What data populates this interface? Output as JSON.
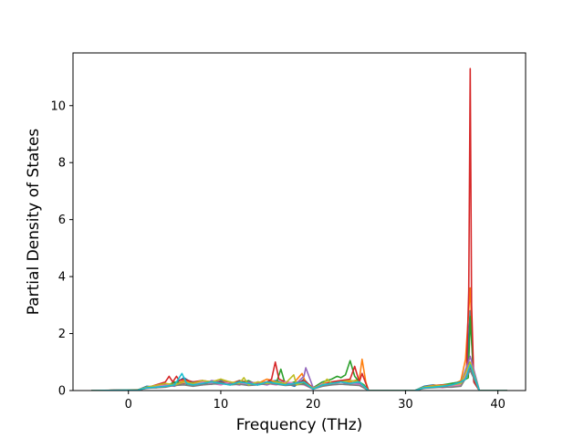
{
  "chart_data": {
    "type": "line",
    "xlabel": "Frequency (THz)",
    "ylabel": "Partial Density of States",
    "xlim": [
      -6,
      43
    ],
    "ylim": [
      0,
      11.85
    ],
    "xticks": [
      0,
      10,
      20,
      30,
      40
    ],
    "yticks": [
      0,
      2,
      4,
      6,
      8,
      10
    ],
    "grid": false,
    "series": [
      {
        "color": "#1f77b4",
        "x": [
          -4,
          1,
          2,
          3,
          4,
          5,
          6,
          7,
          8,
          9,
          10,
          11,
          12,
          13,
          14,
          15,
          16,
          17,
          18,
          19,
          20,
          21,
          22,
          23,
          24,
          25,
          25.5,
          26,
          31,
          32,
          33,
          34,
          35,
          36,
          36.6,
          37,
          37.4,
          38,
          41
        ],
        "y": [
          0,
          0.02,
          0.15,
          0.12,
          0.2,
          0.25,
          0.45,
          0.25,
          0.3,
          0.22,
          0.35,
          0.2,
          0.3,
          0.25,
          0.2,
          0.3,
          0.35,
          0.25,
          0.15,
          0.4,
          0.05,
          0.2,
          0.25,
          0.3,
          0.25,
          0.3,
          0.1,
          0,
          0,
          0.15,
          0.2,
          0.15,
          0.25,
          0.3,
          0.5,
          2.8,
          0.3,
          0,
          0
        ]
      },
      {
        "color": "#ff7f0e",
        "x": [
          -4,
          1,
          2,
          3,
          4,
          5,
          6,
          7,
          8,
          9,
          10,
          11,
          12,
          13,
          14,
          15,
          16,
          17,
          18,
          18.8,
          19.3,
          20,
          21,
          22,
          23,
          24,
          25,
          25.3,
          25.7,
          26,
          31,
          32,
          33,
          34,
          35,
          36,
          36.5,
          37,
          37.4,
          38,
          41
        ],
        "y": [
          0,
          0.03,
          0.12,
          0.15,
          0.22,
          0.2,
          0.35,
          0.3,
          0.25,
          0.3,
          0.4,
          0.25,
          0.35,
          0.3,
          0.25,
          0.4,
          0.3,
          0.2,
          0.3,
          0.6,
          0.2,
          0.1,
          0.25,
          0.3,
          0.35,
          0.3,
          0.4,
          1.1,
          0.3,
          0,
          0,
          0.12,
          0.18,
          0.2,
          0.2,
          0.35,
          1.1,
          3.6,
          0.4,
          0,
          0
        ]
      },
      {
        "color": "#2ca02c",
        "x": [
          -4,
          1,
          2,
          3,
          4,
          5,
          6,
          7,
          8,
          9,
          10,
          11,
          12,
          13,
          14,
          15,
          16,
          16.5,
          17,
          18,
          19,
          20,
          21,
          22,
          22.6,
          23,
          23.5,
          24,
          24.5,
          25,
          25.5,
          26,
          31,
          32,
          33,
          34,
          35,
          36,
          36.8,
          37,
          37.4,
          38,
          41
        ],
        "y": [
          0,
          0.02,
          0.1,
          0.18,
          0.15,
          0.3,
          0.25,
          0.2,
          0.35,
          0.25,
          0.3,
          0.2,
          0.25,
          0.35,
          0.2,
          0.3,
          0.25,
          0.75,
          0.2,
          0.3,
          0.25,
          0.1,
          0.3,
          0.4,
          0.5,
          0.45,
          0.55,
          1.05,
          0.5,
          0.3,
          0.2,
          0,
          0,
          0.1,
          0.15,
          0.2,
          0.25,
          0.3,
          0.45,
          2.6,
          0.3,
          0,
          0
        ]
      },
      {
        "color": "#d62728",
        "x": [
          -4,
          1,
          2,
          3,
          4,
          4.4,
          4.8,
          5.2,
          5.5,
          6,
          7,
          8,
          9,
          10,
          11,
          12,
          13,
          14,
          15,
          15.5,
          15.9,
          16.3,
          17,
          18,
          19,
          20,
          21,
          22,
          23,
          24,
          24.5,
          25,
          25.3,
          26,
          31,
          32,
          33,
          34,
          35,
          36,
          36.6,
          36.85,
          37.0,
          37.15,
          37.4,
          38,
          41
        ],
        "y": [
          0,
          0.02,
          0.1,
          0.2,
          0.3,
          0.5,
          0.3,
          0.5,
          0.35,
          0.4,
          0.3,
          0.35,
          0.3,
          0.25,
          0.3,
          0.2,
          0.3,
          0.25,
          0.3,
          0.4,
          1.0,
          0.4,
          0.3,
          0.25,
          0.35,
          0.1,
          0.2,
          0.3,
          0.35,
          0.4,
          0.85,
          0.3,
          0.6,
          0,
          0,
          0.1,
          0.15,
          0.2,
          0.2,
          0.3,
          0.6,
          3.5,
          11.3,
          3.0,
          0.3,
          0,
          0
        ]
      },
      {
        "color": "#9467bd",
        "x": [
          -4,
          1,
          2,
          3,
          4,
          5,
          6,
          7,
          8,
          9,
          10,
          11,
          12,
          13,
          14,
          15,
          16,
          17,
          18,
          19,
          19.2,
          20,
          21,
          22,
          23,
          24,
          25,
          26,
          31,
          32,
          33,
          34,
          35,
          36,
          37,
          38,
          41
        ],
        "y": [
          0,
          0.02,
          0.08,
          0.12,
          0.2,
          0.15,
          0.3,
          0.25,
          0.2,
          0.35,
          0.3,
          0.25,
          0.2,
          0.3,
          0.25,
          0.2,
          0.3,
          0.25,
          0.2,
          0.5,
          0.8,
          0.1,
          0.2,
          0.25,
          0.3,
          0.2,
          0.25,
          0,
          0,
          0.1,
          0.12,
          0.15,
          0.2,
          0.25,
          1.2,
          0,
          0
        ]
      },
      {
        "color": "#8c564b",
        "x": [
          -4,
          1,
          2,
          3,
          4,
          5,
          6,
          7,
          8,
          9,
          10,
          11,
          12,
          13,
          14,
          15,
          16,
          17,
          18,
          19,
          20,
          21,
          22,
          23,
          24,
          25,
          26,
          31,
          32,
          33,
          34,
          35,
          36,
          37,
          38,
          41
        ],
        "y": [
          0,
          0.02,
          0.12,
          0.1,
          0.15,
          0.2,
          0.25,
          0.3,
          0.2,
          0.25,
          0.3,
          0.2,
          0.35,
          0.25,
          0.2,
          0.3,
          0.25,
          0.2,
          0.25,
          0.3,
          0.05,
          0.2,
          0.25,
          0.3,
          0.35,
          0.3,
          0,
          0,
          0.08,
          0.12,
          0.15,
          0.15,
          0.2,
          0.8,
          0,
          0
        ]
      },
      {
        "color": "#e377c2",
        "x": [
          -4,
          1,
          2,
          3,
          4,
          5,
          6,
          7,
          8,
          9,
          10,
          11,
          12,
          13,
          14,
          15,
          16,
          17,
          18,
          19,
          20,
          21,
          22,
          23,
          24,
          25,
          26,
          31,
          32,
          33,
          34,
          35,
          36,
          37,
          38,
          41
        ],
        "y": [
          0,
          0.02,
          0.1,
          0.15,
          0.18,
          0.22,
          0.28,
          0.2,
          0.3,
          0.25,
          0.2,
          0.3,
          0.25,
          0.2,
          0.3,
          0.25,
          0.2,
          0.3,
          0.25,
          0.2,
          0.05,
          0.25,
          0.2,
          0.3,
          0.25,
          0.2,
          0,
          0,
          0.1,
          0.15,
          0.1,
          0.15,
          0.2,
          0.9,
          0,
          0
        ]
      },
      {
        "color": "#7f7f7f",
        "x": [
          -4,
          1,
          2,
          3,
          4,
          5,
          6,
          7,
          8,
          9,
          10,
          11,
          12,
          13,
          14,
          15,
          16,
          17,
          18,
          19,
          20,
          21,
          22,
          23,
          24,
          25,
          26,
          31,
          32,
          33,
          34,
          35,
          36,
          37,
          38,
          41
        ],
        "y": [
          0,
          0.02,
          0.08,
          0.1,
          0.12,
          0.18,
          0.2,
          0.15,
          0.2,
          0.22,
          0.25,
          0.2,
          0.22,
          0.18,
          0.2,
          0.25,
          0.22,
          0.18,
          0.2,
          0.22,
          0.05,
          0.15,
          0.2,
          0.22,
          0.2,
          0.18,
          0,
          0,
          0.08,
          0.1,
          0.12,
          0.12,
          0.15,
          0.7,
          0,
          0
        ]
      },
      {
        "color": "#bcbd22",
        "x": [
          -4,
          1,
          2,
          3,
          4,
          5,
          6,
          7,
          8,
          9,
          10,
          11,
          12,
          12.5,
          13,
          14,
          15,
          16,
          17,
          17.9,
          18.2,
          19,
          20,
          21,
          21.5,
          22,
          23,
          24,
          25,
          26,
          31,
          32,
          33,
          34,
          35,
          36,
          37,
          38,
          41
        ],
        "y": [
          0,
          0.02,
          0.12,
          0.18,
          0.25,
          0.2,
          0.3,
          0.25,
          0.35,
          0.3,
          0.4,
          0.3,
          0.25,
          0.45,
          0.2,
          0.3,
          0.25,
          0.3,
          0.25,
          0.55,
          0.2,
          0.3,
          0.08,
          0.2,
          0.4,
          0.25,
          0.3,
          0.35,
          0.3,
          0,
          0,
          0.12,
          0.15,
          0.18,
          0.2,
          0.25,
          1.0,
          0,
          0
        ]
      },
      {
        "color": "#17becf",
        "x": [
          -4,
          1,
          2,
          3,
          4,
          5,
          5.8,
          6.3,
          7,
          8,
          9,
          10,
          11,
          12,
          13,
          14,
          15,
          16,
          17,
          18,
          19,
          20,
          21,
          22,
          23,
          24,
          25,
          26,
          31,
          32,
          33,
          34,
          35,
          36,
          36.5,
          37,
          38,
          41
        ],
        "y": [
          0,
          0.02,
          0.1,
          0.12,
          0.15,
          0.2,
          0.6,
          0.25,
          0.2,
          0.25,
          0.3,
          0.25,
          0.2,
          0.3,
          0.25,
          0.2,
          0.3,
          0.25,
          0.2,
          0.25,
          0.3,
          0.05,
          0.2,
          0.25,
          0.3,
          0.25,
          0.3,
          0,
          0,
          0.1,
          0.12,
          0.15,
          0.2,
          0.3,
          0.4,
          0.9,
          0,
          0
        ]
      }
    ]
  }
}
